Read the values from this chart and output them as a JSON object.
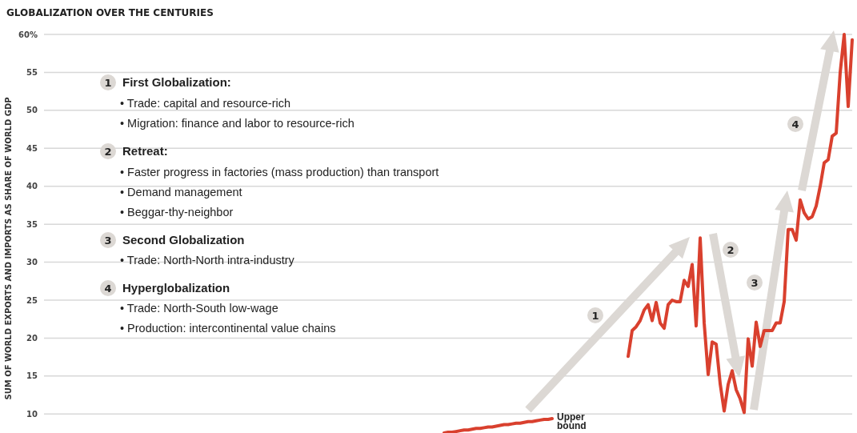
{
  "chart_data": {
    "type": "line",
    "title": "GLOBALIZATION OVER THE CENTURIES",
    "ylabel": "SUM OF WORLD EXPORTS AND IMPORTS AS SHARE OF WORLD GDP",
    "categories": [
      null,
      null,
      null,
      null,
      null,
      null,
      null,
      null,
      null,
      null,
      null,
      null,
      null,
      null,
      null,
      null,
      null,
      null,
      null,
      null,
      null,
      null,
      null,
      null,
      null,
      null,
      null,
      null,
      null,
      null,
      null,
      null,
      null,
      null,
      null,
      null,
      null,
      null,
      null,
      null,
      null,
      null,
      null,
      null,
      null,
      null,
      null,
      null,
      null,
      null,
      null,
      null,
      null,
      null,
      null,
      null,
      null,
      null,
      null,
      null,
      null,
      null,
      null,
      null,
      null,
      null,
      null,
      null,
      null,
      null,
      null,
      null,
      null,
      null,
      null,
      null,
      null,
      null,
      null,
      null,
      null,
      null,
      null,
      null,
      null,
      null,
      null,
      null,
      null,
      null,
      null,
      null,
      null,
      null,
      null,
      null,
      null,
      null,
      null,
      null,
      null,
      null,
      null,
      null,
      null,
      null,
      null,
      null,
      null,
      null,
      null,
      null,
      null,
      null,
      null,
      null,
      null,
      null,
      null,
      null,
      null,
      null,
      null,
      null,
      null,
      null,
      null,
      null,
      null,
      null,
      null,
      null,
      null,
      null,
      null,
      null,
      null,
      null,
      null,
      null,
      null,
      null,
      null,
      null,
      null,
      null,
      null,
      null,
      null,
      null,
      null,
      null,
      null,
      null,
      null,
      null,
      null,
      null,
      null,
      null,
      null,
      null,
      null,
      null,
      null,
      null,
      null,
      null,
      null,
      null,
      null,
      null,
      null,
      null,
      null,
      null,
      null,
      null,
      null,
      null,
      null,
      null,
      null,
      null,
      null,
      null,
      null,
      null,
      null,
      null,
      null,
      null,
      null,
      null,
      null,
      null,
      null,
      null,
      null,
      null,
      null,
      null,
      null
    ],
    "series": [
      {
        "color": "#d9402e",
        "values": [
          null,
          null,
          null,
          null,
          null,
          null,
          null,
          null,
          null,
          null,
          null,
          null,
          null,
          null,
          null,
          null,
          null,
          null,
          null,
          null,
          null,
          null,
          null,
          null,
          null,
          null,
          null,
          null,
          null,
          null,
          null,
          null,
          null,
          null,
          null,
          null,
          null,
          null,
          null,
          null,
          null,
          null,
          null,
          null,
          null,
          null,
          null,
          null,
          null,
          null,
          null,
          null,
          null,
          null,
          null,
          null,
          null,
          null,
          null,
          null,
          null,
          null,
          null,
          null,
          null,
          null,
          null,
          null,
          null,
          null,
          null,
          null,
          null,
          null,
          null,
          null,
          null,
          null,
          null,
          null,
          null,
          null,
          null,
          null,
          null,
          null,
          null,
          null,
          null,
          null,
          null,
          null,
          null,
          null,
          null,
          null,
          null,
          null,
          null,
          null,
          null,
          null,
          null,
          null,
          null,
          null,
          null,
          null,
          null,
          null,
          null,
          null,
          null,
          null,
          null,
          null,
          null,
          null,
          null,
          null,
          null,
          null,
          null,
          null,
          null,
          null,
          null,
          null,
          null,
          null,
          null,
          null,
          null,
          null,
          null,
          null,
          null,
          null,
          null,
          null,
          null,
          null,
          null,
          null,
          null,
          null,
          17.6,
          21.0,
          21.5,
          22.3,
          23.7,
          24.4,
          22.3,
          24.7,
          22.0,
          21.3,
          24.4,
          25.0,
          24.8,
          24.8,
          27.6,
          26.8,
          29.7,
          21.6,
          33.2,
          22.0,
          15.2,
          19.5,
          19.2,
          14.0,
          10.4,
          13.9,
          15.7,
          13.2,
          12.0,
          10.2,
          19.9,
          16.3,
          22.1,
          18.9,
          21.0,
          21.0,
          21.0,
          22.0,
          22.0,
          24.8,
          34.3,
          34.3,
          32.9,
          38.2,
          36.5,
          35.7,
          36.0,
          37.4,
          40.0,
          43.1,
          43.5,
          46.6,
          47.0,
          55.0,
          60.0,
          50.5,
          59.3
        ]
      },
      {
        "name": "Upper bound",
        "color": "#d9402e",
        "values": [
          null,
          null,
          null,
          null,
          null,
          null,
          null,
          null,
          null,
          null,
          null,
          null,
          null,
          null,
          null,
          null,
          null,
          null,
          null,
          null,
          null,
          null,
          null,
          null,
          null,
          null,
          null,
          null,
          null,
          null,
          null,
          null,
          null,
          null,
          null,
          null,
          null,
          null,
          null,
          null,
          null,
          null,
          null,
          null,
          null,
          null,
          null,
          null,
          null,
          null,
          null,
          null,
          null,
          null,
          null,
          null,
          null,
          null,
          null,
          null,
          null,
          null,
          null,
          null,
          null,
          null,
          null,
          null,
          null,
          null,
          null,
          null,
          null,
          null,
          null,
          null,
          null,
          null,
          null,
          null,
          null,
          null,
          null,
          null,
          null,
          null,
          null,
          null,
          null,
          null,
          null,
          null,
          null,
          null,
          null,
          null,
          null,
          null,
          null,
          null,
          7.5,
          7.6,
          7.6,
          7.7,
          7.8,
          7.9,
          7.9,
          8.0,
          8.1,
          8.1,
          8.2,
          8.3,
          8.3,
          8.4,
          8.5,
          8.6,
          8.6,
          8.7,
          8.8,
          8.8,
          8.9,
          9.0,
          9.0,
          9.1,
          9.2,
          9.3,
          9.3,
          9.4,
          null,
          null,
          null,
          null,
          null,
          null,
          null,
          null,
          null,
          null,
          null,
          null,
          null,
          null,
          null,
          null,
          null,
          null,
          null,
          null,
          null,
          null,
          null,
          null,
          null,
          null,
          null,
          null,
          null,
          null,
          null,
          null,
          null,
          null,
          null,
          null,
          null,
          null,
          null,
          null,
          null,
          null,
          null,
          null,
          null,
          null,
          null,
          null,
          null,
          null,
          null,
          null,
          null,
          null,
          null,
          null,
          null,
          null,
          null,
          null,
          null,
          null,
          null,
          null,
          null,
          null,
          null,
          null,
          null,
          null,
          null,
          null,
          null,
          null,
          null
        ]
      }
    ],
    "ylim": [
      7.5,
      60
    ],
    "yticks": [
      10,
      15,
      20,
      25,
      30,
      35,
      40,
      45,
      50,
      55,
      {
        "value": 60,
        "label": "60%"
      }
    ],
    "grid": "y",
    "annotations": [
      "1",
      "First Globalization:",
      "• Trade: capital and resource-rich",
      "• Migration: finance and labor to resource-rich",
      "2",
      "Retreat:",
      "• Faster progress in factories (mass production) than transport",
      "• Demand management",
      "• Beggar-thy-neighbor",
      "3",
      "Second Globalization",
      "• Trade: North-North intra-industry",
      "4",
      "Hyperglobalization",
      "• Trade: North-South low-wage",
      "• Production: intercontinental value chains",
      "1",
      "2",
      "3",
      "4"
    ]
  }
}
